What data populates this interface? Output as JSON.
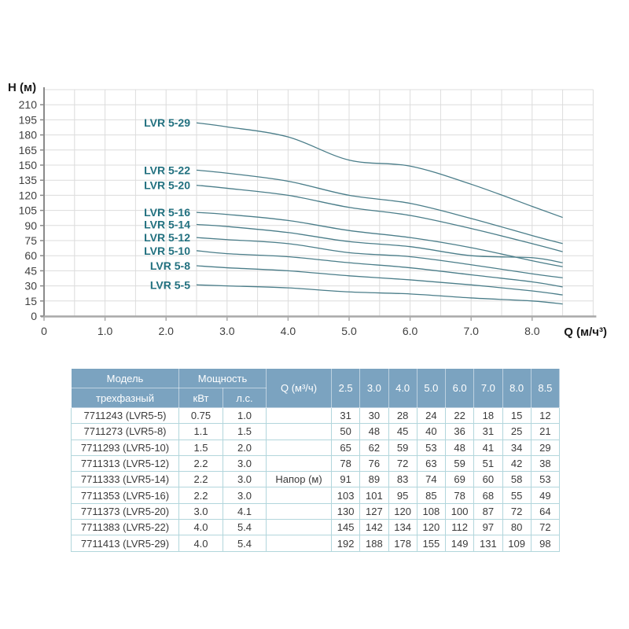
{
  "chart_data": {
    "type": "line",
    "title": "",
    "xlabel": "Q (м/ч³)",
    "ylabel": "H (м)",
    "x": [
      2.5,
      3.0,
      4.0,
      5.0,
      6.0,
      7.0,
      8.0,
      8.5
    ],
    "series": [
      {
        "name": "LVR 5-5",
        "values": [
          31,
          30,
          28,
          24,
          22,
          18,
          15,
          12
        ]
      },
      {
        "name": "LVR 5-8",
        "values": [
          50,
          48,
          45,
          40,
          36,
          31,
          25,
          21
        ]
      },
      {
        "name": "LVR 5-10",
        "values": [
          65,
          62,
          59,
          53,
          48,
          41,
          34,
          29
        ]
      },
      {
        "name": "LVR 5-12",
        "values": [
          78,
          76,
          72,
          63,
          59,
          51,
          42,
          38
        ]
      },
      {
        "name": "LVR 5-14",
        "values": [
          91,
          89,
          83,
          74,
          69,
          60,
          58,
          53
        ]
      },
      {
        "name": "LVR 5-16",
        "values": [
          103,
          101,
          95,
          85,
          78,
          68,
          55,
          49
        ]
      },
      {
        "name": "LVR 5-20",
        "values": [
          130,
          127,
          120,
          108,
          100,
          87,
          72,
          64
        ]
      },
      {
        "name": "LVR 5-22",
        "values": [
          145,
          142,
          134,
          120,
          112,
          97,
          80,
          72
        ]
      },
      {
        "name": "LVR 5-29",
        "values": [
          192,
          188,
          178,
          155,
          149,
          131,
          109,
          98
        ]
      }
    ],
    "xlim": [
      0,
      9.05
    ],
    "ylim": [
      0,
      225
    ],
    "x_tick_labels": [
      "0",
      "1.0",
      "2.0",
      "3.0",
      "4.0",
      "5.0",
      "6.0",
      "7.0",
      "8.0"
    ],
    "y_tick_min": 0,
    "y_tick_max": 210,
    "y_tick_step": 15,
    "x_grid_step": 0.5,
    "grid": true,
    "legend_position": "labels-left-of-curves"
  },
  "table": {
    "header": {
      "model_top": "Модель",
      "model_bottom": "трехфазный",
      "power": "Мощность",
      "kw": "кВт",
      "hp": "л.с.",
      "q": "Q (м³/ч)",
      "q_values": [
        "2.5",
        "3.0",
        "4.0",
        "5.0",
        "6.0",
        "7.0",
        "8.0",
        "8.5"
      ]
    },
    "napor_label": "Напор (м)",
    "napor_row_index": 4,
    "rows": [
      {
        "model": "7711243 (LVR5-5)",
        "kw": "0.75",
        "hp": "1.0",
        "values": [
          31,
          30,
          28,
          24,
          22,
          18,
          15,
          12
        ]
      },
      {
        "model": "7711273 (LVR5-8)",
        "kw": "1.1",
        "hp": "1.5",
        "values": [
          50,
          48,
          45,
          40,
          36,
          31,
          25,
          21
        ]
      },
      {
        "model": "7711293 (LVR5-10)",
        "kw": "1.5",
        "hp": "2.0",
        "values": [
          65,
          62,
          59,
          53,
          48,
          41,
          34,
          29
        ]
      },
      {
        "model": "7711313 (LVR5-12)",
        "kw": "2.2",
        "hp": "3.0",
        "values": [
          78,
          76,
          72,
          63,
          59,
          51,
          42,
          38
        ]
      },
      {
        "model": "7711333 (LVR5-14)",
        "kw": "2.2",
        "hp": "3.0",
        "values": [
          91,
          89,
          83,
          74,
          69,
          60,
          58,
          53
        ]
      },
      {
        "model": "7711353 (LVR5-16)",
        "kw": "2.2",
        "hp": "3.0",
        "values": [
          103,
          101,
          95,
          85,
          78,
          68,
          55,
          49
        ]
      },
      {
        "model": "7711373 (LVR5-20)",
        "kw": "3.0",
        "hp": "4.1",
        "values": [
          130,
          127,
          120,
          108,
          100,
          87,
          72,
          64
        ]
      },
      {
        "model": "7711383 (LVR5-22)",
        "kw": "4.0",
        "hp": "5.4",
        "values": [
          145,
          142,
          134,
          120,
          112,
          97,
          80,
          72
        ]
      },
      {
        "model": "7711413 (LVR5-29)",
        "kw": "4.0",
        "hp": "5.4",
        "values": [
          192,
          188,
          178,
          155,
          149,
          131,
          109,
          98
        ]
      }
    ]
  },
  "colors": {
    "curve": "#4a7d89",
    "series_label": "#21707f",
    "grid": "#dcdcdc",
    "y_axis": "#8a8a8a",
    "x_axis": "#a9a9a9",
    "tick_text": "#3f3f3f",
    "axis_label_text": "#1a1a1a",
    "header_bg": "#7ba3c0",
    "header_divider": "rgba(255,255,255,0.5)",
    "header_text": "#ffffff",
    "table_border": "#b2d6dc",
    "body_text": "#3a3a3a"
  }
}
